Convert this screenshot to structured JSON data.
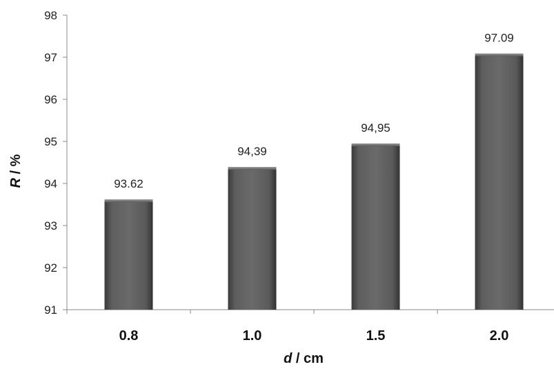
{
  "chart_data": {
    "type": "bar",
    "categories": [
      "0.8",
      "1.0",
      "1.5",
      "2.0"
    ],
    "values": [
      93.62,
      94.39,
      94.95,
      97.09
    ],
    "data_labels": [
      "93.62",
      "94,39",
      "94,95",
      "97.09"
    ],
    "xlabel": {
      "var": "d",
      "unit": " / cm"
    },
    "ylabel": {
      "var": "R",
      "unit": " / %"
    },
    "ylim": [
      91,
      98
    ],
    "yticks": [
      91,
      92,
      93,
      94,
      95,
      96,
      97,
      98
    ],
    "grid": false,
    "legend": "none",
    "bar_color": "#5a5a5a"
  }
}
